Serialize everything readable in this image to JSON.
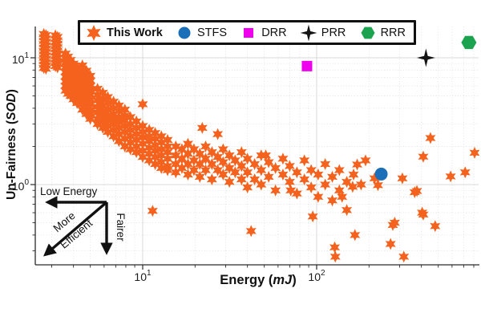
{
  "chart_data": {
    "type": "scatter",
    "x_scale": "log",
    "y_scale": "log",
    "xlim": [
      2.4,
      850
    ],
    "ylim": [
      0.23,
      18
    ],
    "grid": true,
    "legend_position": "top",
    "xlabel": {
      "pre": "Energy (",
      "italic": "mJ",
      "post": ")"
    },
    "ylabel": {
      "pre": "Un-Fairness (",
      "italic": "SOD",
      "post": ")"
    },
    "x_ticks": [
      {
        "base": "10",
        "exp": "1",
        "value": 10
      },
      {
        "base": "10",
        "exp": "2",
        "value": 100
      }
    ],
    "y_ticks": [
      {
        "base": "10",
        "exp": "0",
        "value": 1
      },
      {
        "base": "10",
        "exp": "1",
        "value": 10
      }
    ],
    "annotations": {
      "low_energy": "Low Energy",
      "more_efficient": [
        "More",
        "Efficient"
      ],
      "fairer": "Fairer"
    },
    "series": [
      {
        "name": "This Work",
        "marker": "star6",
        "color": "#F4621E",
        "size": 7.5,
        "bold_label": true,
        "points": [
          [
            2.7,
            15.4
          ],
          [
            2.7,
            14.5
          ],
          [
            2.7,
            13.6
          ],
          [
            2.7,
            12.8
          ],
          [
            2.7,
            12.0
          ],
          [
            2.7,
            11.3
          ],
          [
            2.7,
            10.6
          ],
          [
            2.7,
            10.0
          ],
          [
            2.7,
            9.4
          ],
          [
            2.7,
            8.8
          ],
          [
            2.7,
            8.3
          ],
          [
            2.78,
            15.1
          ],
          [
            2.78,
            14.2
          ],
          [
            2.78,
            13.3
          ],
          [
            2.78,
            12.5
          ],
          [
            2.78,
            11.8
          ],
          [
            2.78,
            11.1
          ],
          [
            2.78,
            10.4
          ],
          [
            2.78,
            9.8
          ],
          [
            2.78,
            9.2
          ],
          [
            2.78,
            8.7
          ],
          [
            2.78,
            8.2
          ],
          [
            3.15,
            15.0
          ],
          [
            3.15,
            14.1
          ],
          [
            3.15,
            13.2
          ],
          [
            3.15,
            12.4
          ],
          [
            3.15,
            11.7
          ],
          [
            3.15,
            11.0
          ],
          [
            3.15,
            10.3
          ],
          [
            3.15,
            9.7
          ],
          [
            3.15,
            9.1
          ],
          [
            3.15,
            8.6
          ],
          [
            3.24,
            14.6
          ],
          [
            3.24,
            13.7
          ],
          [
            3.24,
            12.9
          ],
          [
            3.24,
            12.1
          ],
          [
            3.24,
            11.4
          ],
          [
            3.24,
            10.7
          ],
          [
            3.24,
            10.0
          ],
          [
            3.24,
            9.4
          ],
          [
            3.24,
            8.9
          ],
          [
            3.24,
            8.4
          ],
          [
            3.6,
            10.8
          ],
          [
            3.6,
            9.9
          ],
          [
            3.6,
            9.1
          ],
          [
            3.6,
            8.4
          ],
          [
            3.6,
            7.7
          ],
          [
            3.6,
            7.1
          ],
          [
            3.6,
            6.5
          ],
          [
            3.6,
            6.0
          ],
          [
            3.6,
            5.5
          ],
          [
            3.72,
            10.2
          ],
          [
            3.72,
            9.4
          ],
          [
            3.72,
            8.6
          ],
          [
            3.72,
            7.9
          ],
          [
            3.72,
            7.3
          ],
          [
            3.72,
            6.7
          ],
          [
            3.72,
            6.2
          ],
          [
            3.72,
            5.7
          ],
          [
            3.72,
            5.2
          ],
          [
            3.85,
            9.6
          ],
          [
            3.85,
            8.8
          ],
          [
            3.85,
            8.1
          ],
          [
            3.85,
            7.5
          ],
          [
            3.85,
            6.9
          ],
          [
            3.85,
            6.4
          ],
          [
            3.85,
            5.9
          ],
          [
            3.85,
            5.4
          ],
          [
            3.85,
            5.0
          ],
          [
            4.0,
            9.0
          ],
          [
            4.0,
            8.3
          ],
          [
            4.0,
            7.6
          ],
          [
            4.0,
            7.0
          ],
          [
            4.0,
            6.5
          ],
          [
            4.0,
            6.0
          ],
          [
            4.0,
            5.5
          ],
          [
            4.0,
            5.1
          ],
          [
            4.0,
            4.7
          ],
          [
            4.2,
            8.4
          ],
          [
            4.2,
            7.7
          ],
          [
            4.2,
            7.1
          ],
          [
            4.2,
            6.6
          ],
          [
            4.2,
            6.1
          ],
          [
            4.2,
            5.6
          ],
          [
            4.2,
            5.2
          ],
          [
            4.2,
            4.8
          ],
          [
            4.2,
            4.4
          ],
          [
            4.5,
            8.7
          ],
          [
            4.5,
            7.9
          ],
          [
            4.5,
            7.2
          ],
          [
            4.5,
            6.6
          ],
          [
            4.5,
            6.0
          ],
          [
            4.5,
            5.5
          ],
          [
            4.5,
            5.1
          ],
          [
            4.5,
            4.7
          ],
          [
            4.5,
            4.3
          ],
          [
            4.5,
            3.9
          ],
          [
            4.75,
            7.9
          ],
          [
            4.75,
            7.2
          ],
          [
            4.75,
            6.6
          ],
          [
            4.75,
            6.0
          ],
          [
            4.75,
            5.5
          ],
          [
            4.75,
            5.1
          ],
          [
            4.75,
            4.7
          ],
          [
            4.75,
            4.3
          ],
          [
            4.75,
            3.9
          ],
          [
            4.75,
            3.6
          ],
          [
            5.0,
            7.2
          ],
          [
            5.0,
            6.6
          ],
          [
            5.0,
            6.0
          ],
          [
            5.0,
            5.5
          ],
          [
            5.0,
            5.1
          ],
          [
            5.0,
            4.7
          ],
          [
            5.0,
            4.3
          ],
          [
            5.0,
            3.9
          ],
          [
            5.0,
            3.6
          ],
          [
            5.0,
            3.3
          ],
          [
            5.5,
            5.7
          ],
          [
            5.5,
            5.1
          ],
          [
            5.5,
            4.6
          ],
          [
            5.5,
            4.1
          ],
          [
            5.5,
            3.7
          ],
          [
            5.5,
            3.3
          ],
          [
            5.5,
            3.0
          ],
          [
            5.9,
            5.3
          ],
          [
            5.9,
            4.7
          ],
          [
            5.9,
            4.2
          ],
          [
            5.9,
            3.8
          ],
          [
            5.9,
            3.4
          ],
          [
            5.9,
            3.1
          ],
          [
            5.9,
            2.8
          ],
          [
            6.3,
            4.9
          ],
          [
            6.3,
            4.4
          ],
          [
            6.3,
            3.9
          ],
          [
            6.3,
            3.5
          ],
          [
            6.3,
            3.2
          ],
          [
            6.3,
            2.9
          ],
          [
            6.3,
            2.6
          ],
          [
            6.8,
            4.5
          ],
          [
            6.8,
            4.0
          ],
          [
            6.8,
            3.6
          ],
          [
            6.8,
            3.3
          ],
          [
            6.8,
            3.0
          ],
          [
            6.8,
            2.7
          ],
          [
            6.8,
            2.4
          ],
          [
            7.3,
            4.2
          ],
          [
            7.3,
            3.8
          ],
          [
            7.3,
            3.4
          ],
          [
            7.3,
            3.1
          ],
          [
            7.3,
            2.8
          ],
          [
            7.3,
            2.5
          ],
          [
            7.3,
            2.2
          ],
          [
            7.9,
            3.9
          ],
          [
            7.9,
            3.5
          ],
          [
            7.9,
            3.2
          ],
          [
            7.9,
            2.9
          ],
          [
            7.9,
            2.6
          ],
          [
            7.9,
            2.3
          ],
          [
            7.9,
            2.0
          ],
          [
            8.5,
            3.4
          ],
          [
            8.5,
            3.0
          ],
          [
            8.5,
            2.7
          ],
          [
            8.5,
            2.4
          ],
          [
            8.5,
            2.15
          ],
          [
            8.5,
            1.9
          ],
          [
            9.2,
            3.15
          ],
          [
            9.2,
            2.8
          ],
          [
            9.2,
            2.5
          ],
          [
            9.2,
            2.25
          ],
          [
            9.2,
            2.0
          ],
          [
            9.2,
            1.8
          ],
          [
            10,
            4.3
          ],
          [
            10,
            2.9
          ],
          [
            10,
            2.6
          ],
          [
            10,
            2.35
          ],
          [
            10,
            2.1
          ],
          [
            10,
            1.85
          ],
          [
            10,
            1.65
          ],
          [
            10.9,
            2.7
          ],
          [
            10.9,
            2.4
          ],
          [
            10.9,
            2.2
          ],
          [
            10.9,
            1.95
          ],
          [
            10.9,
            1.75
          ],
          [
            10.9,
            1.55
          ],
          [
            11.4,
            0.62
          ],
          [
            11.8,
            2.55
          ],
          [
            11.8,
            2.3
          ],
          [
            11.8,
            2.05
          ],
          [
            11.8,
            1.85
          ],
          [
            11.8,
            1.65
          ],
          [
            11.8,
            1.45
          ],
          [
            12.8,
            2.4
          ],
          [
            12.8,
            2.15
          ],
          [
            12.8,
            1.9
          ],
          [
            12.8,
            1.7
          ],
          [
            12.8,
            1.5
          ],
          [
            12.8,
            1.35
          ],
          [
            13.9,
            2.25
          ],
          [
            13.9,
            2.0
          ],
          [
            13.9,
            1.8
          ],
          [
            13.9,
            1.6
          ],
          [
            13.9,
            1.4
          ],
          [
            13.9,
            1.3
          ],
          [
            15.5,
            2.0
          ],
          [
            15.5,
            1.7
          ],
          [
            15.5,
            1.45
          ],
          [
            15.5,
            1.25
          ],
          [
            16.8,
            1.9
          ],
          [
            16.8,
            1.6
          ],
          [
            16.8,
            1.35
          ],
          [
            18.2,
            2.1
          ],
          [
            18.2,
            1.75
          ],
          [
            18.2,
            1.45
          ],
          [
            18.2,
            1.2
          ],
          [
            19.7,
            1.9
          ],
          [
            19.7,
            1.55
          ],
          [
            19.7,
            1.3
          ],
          [
            21.3,
            1.75
          ],
          [
            21.3,
            1.45
          ],
          [
            21.3,
            1.15
          ],
          [
            22,
            2.8
          ],
          [
            23,
            2.0
          ],
          [
            23,
            1.6
          ],
          [
            23,
            1.3
          ],
          [
            25,
            1.8
          ],
          [
            25,
            1.45
          ],
          [
            25,
            1.1
          ],
          [
            27,
            2.5
          ],
          [
            27,
            1.65
          ],
          [
            27,
            1.3
          ],
          [
            29,
            1.9
          ],
          [
            29,
            1.5
          ],
          [
            29,
            1.2
          ],
          [
            31.5,
            1.7
          ],
          [
            31.5,
            1.35
          ],
          [
            31.5,
            1.05
          ],
          [
            34,
            1.55
          ],
          [
            34,
            1.25
          ],
          [
            37,
            1.8
          ],
          [
            37,
            1.4
          ],
          [
            37,
            1.1
          ],
          [
            40,
            1.6
          ],
          [
            40,
            1.25
          ],
          [
            40,
            0.95
          ],
          [
            42,
            0.43
          ],
          [
            44,
            1.45
          ],
          [
            44,
            1.1
          ],
          [
            48,
            1.7
          ],
          [
            48,
            1.3
          ],
          [
            48,
            1.0
          ],
          [
            51,
            1.7
          ],
          [
            53,
            1.5
          ],
          [
            53,
            1.15
          ],
          [
            58,
            1.35
          ],
          [
            58,
            0.9
          ],
          [
            64,
            1.6
          ],
          [
            64,
            1.2
          ],
          [
            70,
            1.4
          ],
          [
            70,
            1.05
          ],
          [
            71,
            0.9
          ],
          [
            77,
            1.25
          ],
          [
            77,
            0.85
          ],
          [
            85,
            1.55
          ],
          [
            85,
            1.1
          ],
          [
            93,
            1.3
          ],
          [
            93,
            0.95
          ],
          [
            95,
            0.56
          ],
          [
            102,
            1.2
          ],
          [
            102,
            0.8
          ],
          [
            112,
            1.45
          ],
          [
            112,
            1.0
          ],
          [
            123,
            1.15
          ],
          [
            123,
            0.75
          ],
          [
            127,
            0.32
          ],
          [
            128,
            0.27
          ],
          [
            135,
            1.3
          ],
          [
            135,
            0.9
          ],
          [
            140,
            0.8
          ],
          [
            149,
            1.05
          ],
          [
            149,
            0.63
          ],
          [
            161,
            0.96
          ],
          [
            163,
            1.2
          ],
          [
            166,
            0.4
          ],
          [
            171,
            1.44
          ],
          [
            180,
            1.0
          ],
          [
            191,
            1.55
          ],
          [
            215,
            1.12
          ],
          [
            225,
            0.99
          ],
          [
            266,
            0.34
          ],
          [
            274,
            0.48
          ],
          [
            281,
            0.5
          ],
          [
            311,
            1.12
          ],
          [
            317,
            0.27
          ],
          [
            366,
            0.87
          ],
          [
            377,
            0.89
          ],
          [
            404,
            0.6
          ],
          [
            410,
            1.66
          ],
          [
            410,
            0.58
          ],
          [
            451,
            2.33
          ],
          [
            480,
            0.47
          ],
          [
            589,
            1.16
          ],
          [
            714,
            1.25
          ],
          [
            809,
            1.78
          ]
        ]
      },
      {
        "name": "STFS",
        "marker": "circle",
        "color": "#1B6FB8",
        "size": 8,
        "points": [
          [
            235,
            1.21
          ]
        ]
      },
      {
        "name": "DRR",
        "marker": "square",
        "color": "#EE00EE",
        "size": 6.5,
        "points": [
          [
            88,
            8.6
          ]
        ]
      },
      {
        "name": "PRR",
        "marker": "star4",
        "color": "#141414",
        "size": 11.5,
        "points": [
          [
            425,
            10.0
          ]
        ]
      },
      {
        "name": "RRR",
        "marker": "hexagon",
        "color": "#1CA34F",
        "size": 9.5,
        "points": [
          [
            750,
            13.2
          ]
        ]
      }
    ]
  }
}
